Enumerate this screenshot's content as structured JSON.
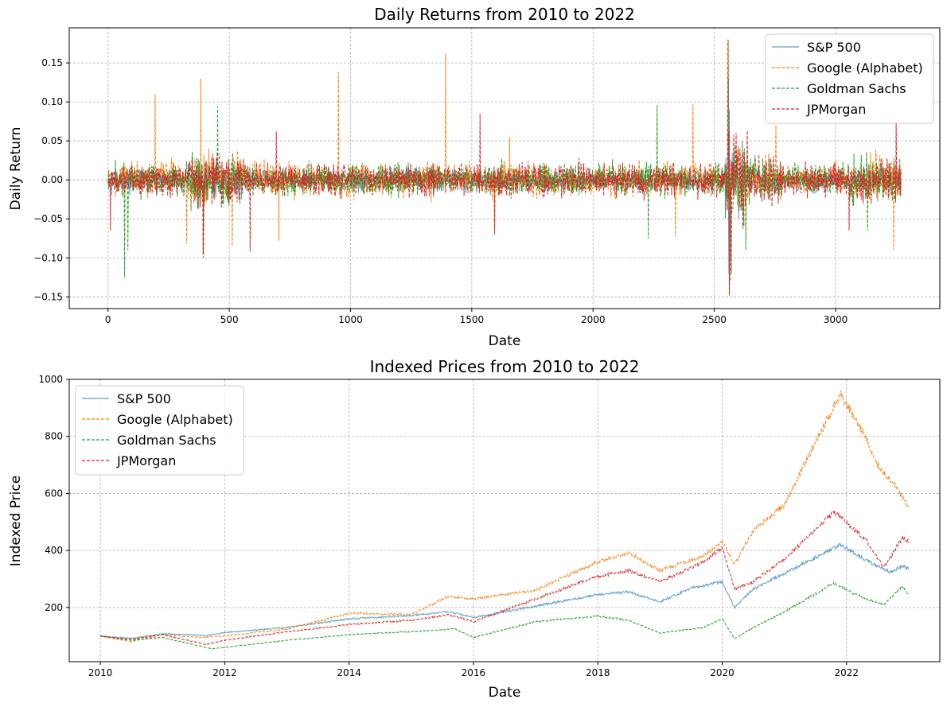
{
  "chart_data": [
    {
      "type": "line",
      "title": "Daily Returns from 2010 to 2022",
      "xlabel": "Date",
      "ylabel": "Daily Return",
      "xlim": [
        -160,
        3430
      ],
      "ylim": [
        -0.165,
        0.195
      ],
      "xticks": [
        0,
        500,
        1000,
        1500,
        2000,
        2500,
        3000
      ],
      "yticks": [
        -0.15,
        -0.1,
        -0.05,
        0.0,
        0.05,
        0.1,
        0.15
      ],
      "ytick_labels": [
        "−0.15",
        "−0.10",
        "−0.05",
        "0.00",
        "0.05",
        "0.10",
        "0.15"
      ],
      "grid": true,
      "legend_position": "top-right",
      "series": [
        {
          "name": "S&P 500",
          "color": "#1f77b4",
          "style": "solid",
          "amplitude": 0.012,
          "spikes": [
            [
              15,
              -0.02
            ],
            [
              395,
              -0.06
            ],
            [
              2560,
              -0.12
            ],
            [
              2563,
              0.09
            ],
            [
              2600,
              -0.05
            ]
          ]
        },
        {
          "name": "Google (Alphabet)",
          "color": "#ff7f0e",
          "style": "dashed",
          "amplitude": 0.018,
          "spikes": [
            [
              195,
              0.11
            ],
            [
              325,
              -0.082
            ],
            [
              383,
              0.13
            ],
            [
              512,
              -0.085
            ],
            [
              704,
              -0.078
            ],
            [
              950,
              0.138
            ],
            [
              1392,
              0.162
            ],
            [
              1594,
              -0.07
            ],
            [
              1657,
              0.055
            ],
            [
              2340,
              -0.073
            ],
            [
              2412,
              0.097
            ],
            [
              2559,
              0.18
            ],
            [
              2567,
              -0.1
            ],
            [
              2755,
              0.07
            ],
            [
              3240,
              -0.09
            ]
          ]
        },
        {
          "name": "Goldman Sachs",
          "color": "#2ca02c",
          "style": "dashed",
          "amplitude": 0.017,
          "spikes": [
            [
              68,
              -0.125
            ],
            [
              82,
              -0.09
            ],
            [
              394,
              -0.1
            ],
            [
              453,
              0.094
            ],
            [
              2265,
              0.096
            ],
            [
              2228,
              -0.075
            ],
            [
              2558,
              0.13
            ],
            [
              2566,
              -0.13
            ],
            [
              2630,
              -0.09
            ],
            [
              3133,
              -0.065
            ]
          ]
        },
        {
          "name": "JPMorgan",
          "color": "#d62728",
          "style": "dashed",
          "amplitude": 0.017,
          "spikes": [
            [
              10,
              -0.065
            ],
            [
              393,
              -0.095
            ],
            [
              587,
              -0.092
            ],
            [
              695,
              0.062
            ],
            [
              1535,
              0.085
            ],
            [
              1594,
              -0.07
            ],
            [
              2557,
              0.18
            ],
            [
              2562,
              -0.148
            ],
            [
              2571,
              -0.12
            ],
            [
              3056,
              -0.065
            ],
            [
              3250,
              0.075
            ]
          ]
        }
      ]
    },
    {
      "type": "line",
      "title": "Indexed Prices from 2010 to 2022",
      "xlabel": "Date",
      "ylabel": "Indexed Price",
      "xlim": [
        2009.5,
        2023.5
      ],
      "ylim": [
        10,
        1000
      ],
      "xticks": [
        2010,
        2012,
        2014,
        2016,
        2018,
        2020,
        2022
      ],
      "yticks": [
        200,
        400,
        600,
        800,
        1000
      ],
      "grid": true,
      "legend_position": "top-left",
      "series": [
        {
          "name": "S&P 500",
          "color": "#1f77b4",
          "style": "solid",
          "points": [
            [
              2010,
              100
            ],
            [
              2010.5,
              92
            ],
            [
              2011,
              108
            ],
            [
              2011.7,
              102
            ],
            [
              2012,
              112
            ],
            [
              2013,
              130
            ],
            [
              2014,
              160
            ],
            [
              2015,
              172
            ],
            [
              2015.6,
              185
            ],
            [
              2016,
              165
            ],
            [
              2017,
              205
            ],
            [
              2018,
              245
            ],
            [
              2018.5,
              255
            ],
            [
              2019,
              220
            ],
            [
              2019.5,
              268
            ],
            [
              2020,
              290
            ],
            [
              2020.2,
              200
            ],
            [
              2020.5,
              265
            ],
            [
              2021,
              320
            ],
            [
              2021.9,
              420
            ],
            [
              2022.4,
              355
            ],
            [
              2022.7,
              325
            ],
            [
              2022.9,
              345
            ],
            [
              2023,
              335
            ]
          ]
        },
        {
          "name": "Google (Alphabet)",
          "color": "#ff7f0e",
          "style": "dashed",
          "points": [
            [
              2010,
              100
            ],
            [
              2010.5,
              80
            ],
            [
              2011,
              105
            ],
            [
              2011.6,
              95
            ],
            [
              2012,
              100
            ],
            [
              2013,
              125
            ],
            [
              2014,
              180
            ],
            [
              2015,
              175
            ],
            [
              2015.6,
              240
            ],
            [
              2016,
              230
            ],
            [
              2017,
              260
            ],
            [
              2018,
              360
            ],
            [
              2018.5,
              390
            ],
            [
              2019,
              330
            ],
            [
              2019.7,
              380
            ],
            [
              2020,
              430
            ],
            [
              2020.2,
              350
            ],
            [
              2020.5,
              470
            ],
            [
              2021,
              560
            ],
            [
              2021.5,
              780
            ],
            [
              2021.9,
              950
            ],
            [
              2022.3,
              800
            ],
            [
              2022.5,
              700
            ],
            [
              2022.8,
              620
            ],
            [
              2023,
              550
            ]
          ]
        },
        {
          "name": "Goldman Sachs",
          "color": "#2ca02c",
          "style": "dashed",
          "points": [
            [
              2010,
              100
            ],
            [
              2010.5,
              85
            ],
            [
              2011,
              95
            ],
            [
              2011.8,
              55
            ],
            [
              2012,
              60
            ],
            [
              2013,
              85
            ],
            [
              2014,
              105
            ],
            [
              2015,
              115
            ],
            [
              2015.7,
              125
            ],
            [
              2016,
              95
            ],
            [
              2017,
              150
            ],
            [
              2018,
              170
            ],
            [
              2018.5,
              155
            ],
            [
              2019,
              110
            ],
            [
              2019.7,
              130
            ],
            [
              2020,
              160
            ],
            [
              2020.2,
              90
            ],
            [
              2020.5,
              130
            ],
            [
              2021,
              185
            ],
            [
              2021.8,
              285
            ],
            [
              2022.3,
              230
            ],
            [
              2022.6,
              210
            ],
            [
              2022.9,
              275
            ],
            [
              2023,
              245
            ]
          ]
        },
        {
          "name": "JPMorgan",
          "color": "#d62728",
          "style": "dashed",
          "points": [
            [
              2010,
              100
            ],
            [
              2010.5,
              88
            ],
            [
              2011,
              105
            ],
            [
              2011.7,
              70
            ],
            [
              2012,
              85
            ],
            [
              2013,
              115
            ],
            [
              2014,
              140
            ],
            [
              2015,
              155
            ],
            [
              2015.6,
              175
            ],
            [
              2016,
              150
            ],
            [
              2017,
              230
            ],
            [
              2018,
              310
            ],
            [
              2018.5,
              330
            ],
            [
              2019,
              290
            ],
            [
              2019.7,
              360
            ],
            [
              2020,
              410
            ],
            [
              2020.2,
              265
            ],
            [
              2020.5,
              290
            ],
            [
              2021,
              370
            ],
            [
              2021.8,
              535
            ],
            [
              2022.3,
              440
            ],
            [
              2022.6,
              340
            ],
            [
              2022.9,
              445
            ],
            [
              2023,
              430
            ]
          ]
        }
      ]
    }
  ]
}
